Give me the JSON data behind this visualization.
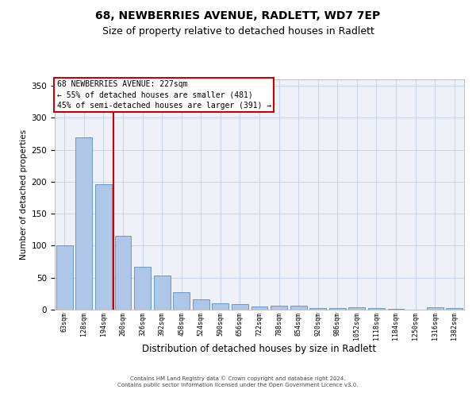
{
  "title": "68, NEWBERRIES AVENUE, RADLETT, WD7 7EP",
  "subtitle": "Size of property relative to detached houses in Radlett",
  "xlabel": "Distribution of detached houses by size in Radlett",
  "ylabel": "Number of detached properties",
  "categories": [
    "63sqm",
    "128sqm",
    "194sqm",
    "260sqm",
    "326sqm",
    "392sqm",
    "458sqm",
    "524sqm",
    "590sqm",
    "656sqm",
    "722sqm",
    "788sqm",
    "854sqm",
    "920sqm",
    "986sqm",
    "1052sqm",
    "1118sqm",
    "1184sqm",
    "1250sqm",
    "1316sqm",
    "1382sqm"
  ],
  "values": [
    100,
    270,
    196,
    115,
    67,
    54,
    27,
    16,
    10,
    9,
    5,
    6,
    6,
    3,
    2,
    4,
    2,
    1,
    0,
    4,
    2
  ],
  "bar_color": "#aec6e8",
  "bar_edge_color": "#5a8fc0",
  "grid_color": "#c8d4e8",
  "background_color": "#eef2f8",
  "annotation_box_color": "#ffffff",
  "annotation_border_color": "#cc0000",
  "red_line_x": 2.5,
  "annotation_text_line1": "68 NEWBERRIES AVENUE: 227sqm",
  "annotation_text_line2": "← 55% of detached houses are smaller (481)",
  "annotation_text_line3": "45% of semi-detached houses are larger (391) →",
  "ylim": [
    0,
    360
  ],
  "yticks": [
    0,
    50,
    100,
    150,
    200,
    250,
    300,
    350
  ],
  "footer_line1": "Contains HM Land Registry data © Crown copyright and database right 2024.",
  "footer_line2": "Contains public sector information licensed under the Open Government Licence v3.0.",
  "title_fontsize": 10,
  "subtitle_fontsize": 9,
  "xlabel_fontsize": 8.5,
  "ylabel_fontsize": 7.5,
  "xtick_fontsize": 6,
  "ytick_fontsize": 7.5,
  "footer_fontsize": 5,
  "ann_fontsize": 7
}
